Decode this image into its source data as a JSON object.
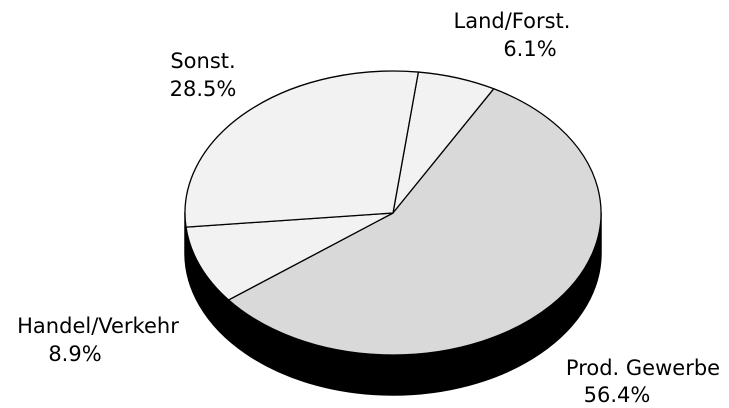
{
  "chart_data": {
    "type": "pie",
    "categories": [
      "Land/Forst.",
      "Prod. Gewerbe",
      "Handel/Verkehr",
      "Sonst."
    ],
    "values": [
      6.1,
      56.4,
      8.9,
      28.5
    ],
    "value_labels": [
      "6.1%",
      "56.4%",
      "8.9%",
      "28.5%"
    ],
    "colors": [
      "#f2f2f2",
      "#d9d9d9",
      "#f2f2f2",
      "#f2f2f2"
    ]
  }
}
